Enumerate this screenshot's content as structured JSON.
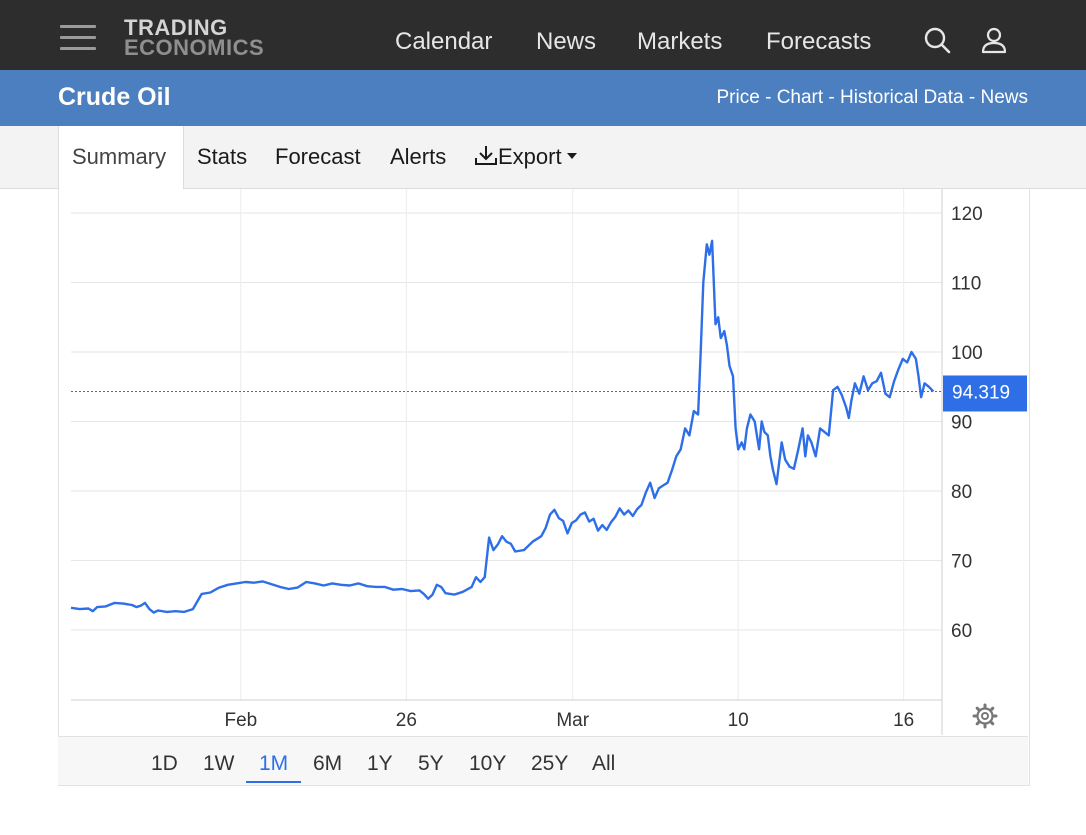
{
  "header": {
    "logo_line1": "TRADING",
    "logo_line2": "ECONOMICS",
    "nav": [
      "Calendar",
      "News",
      "Markets",
      "Forecasts"
    ]
  },
  "title_bar": {
    "title": "Crude Oil",
    "links": [
      "Price",
      "Chart",
      "Historical Data",
      "News"
    ],
    "separator": " - "
  },
  "tabs": {
    "summary": "Summary",
    "stats": "Stats",
    "forecast": "Forecast",
    "alerts": "Alerts",
    "export": "Export"
  },
  "ranges": [
    "1D",
    "1W",
    "1M",
    "6M",
    "1Y",
    "5Y",
    "10Y",
    "25Y",
    "All"
  ],
  "active_range": "1M",
  "colors": {
    "header_bg": "#2d2d2d",
    "title_bg": "#4c7fbf",
    "line": "#2e6fe8",
    "last_label_bg": "#2e6fe8"
  },
  "chart_data": {
    "type": "line",
    "ylim": [
      50,
      120
    ],
    "yticks": [
      60,
      70,
      80,
      90,
      100,
      110,
      120
    ],
    "xlim": [
      0,
      100
    ],
    "xticks": [
      {
        "x": 19.5,
        "label": "Feb"
      },
      {
        "x": 38.5,
        "label": "26"
      },
      {
        "x": 57.6,
        "label": "Mar"
      },
      {
        "x": 76.6,
        "label": "10"
      },
      {
        "x": 95.6,
        "label": "16"
      }
    ],
    "last_value": "94.319",
    "series": [
      {
        "values": [
          [
            0,
            63.2
          ],
          [
            1,
            63.0
          ],
          [
            2,
            63.1
          ],
          [
            2.5,
            62.7
          ],
          [
            3,
            63.3
          ],
          [
            4,
            63.4
          ],
          [
            5,
            63.9
          ],
          [
            6,
            63.8
          ],
          [
            7,
            63.6
          ],
          [
            7.5,
            63.3
          ],
          [
            8,
            63.5
          ],
          [
            8.5,
            63.9
          ],
          [
            9,
            63.0
          ],
          [
            9.5,
            62.5
          ],
          [
            10,
            62.8
          ],
          [
            11,
            62.6
          ],
          [
            12,
            62.7
          ],
          [
            13,
            62.6
          ],
          [
            14,
            63.0
          ],
          [
            15,
            65.2
          ],
          [
            16,
            65.4
          ],
          [
            17,
            66.1
          ],
          [
            18,
            66.5
          ],
          [
            19,
            66.7
          ],
          [
            20,
            66.9
          ],
          [
            21,
            66.8
          ],
          [
            22,
            67.0
          ],
          [
            23,
            66.6
          ],
          [
            24,
            66.2
          ],
          [
            25,
            65.9
          ],
          [
            26,
            66.1
          ],
          [
            27,
            66.9
          ],
          [
            28,
            66.7
          ],
          [
            29,
            66.4
          ],
          [
            30,
            66.7
          ],
          [
            31,
            66.5
          ],
          [
            32,
            66.4
          ],
          [
            33,
            66.7
          ],
          [
            34,
            66.3
          ],
          [
            35,
            66.2
          ],
          [
            36,
            66.2
          ],
          [
            37,
            65.8
          ],
          [
            38,
            65.9
          ],
          [
            39,
            65.6
          ],
          [
            40,
            65.7
          ],
          [
            40.5,
            65.2
          ],
          [
            41,
            64.5
          ],
          [
            41.5,
            65.1
          ],
          [
            42,
            66.5
          ],
          [
            42.5,
            66.2
          ],
          [
            43,
            65.3
          ],
          [
            44,
            65.1
          ],
          [
            45,
            65.5
          ],
          [
            46,
            66.2
          ],
          [
            46.5,
            67.6
          ],
          [
            47,
            66.9
          ],
          [
            47.5,
            67.6
          ],
          [
            48,
            73.3
          ],
          [
            48.5,
            71.5
          ],
          [
            49,
            72.3
          ],
          [
            49.5,
            73.5
          ],
          [
            50,
            72.7
          ],
          [
            50.5,
            72.4
          ],
          [
            51,
            71.3
          ],
          [
            52,
            71.5
          ],
          [
            53,
            72.7
          ],
          [
            54,
            73.5
          ],
          [
            54.5,
            74.7
          ],
          [
            55,
            76.6
          ],
          [
            55.5,
            77.3
          ],
          [
            56,
            76.1
          ],
          [
            56.5,
            75.7
          ],
          [
            57,
            73.9
          ],
          [
            57.5,
            75.4
          ],
          [
            58,
            75.8
          ],
          [
            58.5,
            76.6
          ],
          [
            59,
            76.9
          ],
          [
            59.5,
            75.6
          ],
          [
            60,
            76.0
          ],
          [
            60.5,
            74.3
          ],
          [
            61,
            75.1
          ],
          [
            61.5,
            74.4
          ],
          [
            62,
            75.5
          ],
          [
            62.5,
            76.3
          ],
          [
            63,
            77.5
          ],
          [
            63.5,
            76.6
          ],
          [
            64,
            77.2
          ],
          [
            64.5,
            76.4
          ],
          [
            65,
            77.4
          ],
          [
            65.5,
            78.0
          ],
          [
            66,
            79.8
          ],
          [
            66.5,
            81.2
          ],
          [
            67,
            79.0
          ],
          [
            67.5,
            80.4
          ],
          [
            68,
            80.8
          ],
          [
            68.5,
            81.2
          ],
          [
            69,
            83.0
          ],
          [
            69.5,
            85.0
          ],
          [
            70,
            86.0
          ],
          [
            70.5,
            89.0
          ],
          [
            71,
            88.0
          ],
          [
            71.5,
            91.5
          ],
          [
            72,
            91.0
          ],
          [
            72.3,
            100.0
          ],
          [
            72.6,
            110.0
          ],
          [
            73,
            115.5
          ],
          [
            73.3,
            114.0
          ],
          [
            73.6,
            116.0
          ],
          [
            74,
            104.0
          ],
          [
            74.3,
            105.0
          ],
          [
            74.6,
            102.0
          ],
          [
            75,
            103.0
          ],
          [
            75.3,
            101.0
          ],
          [
            75.6,
            98.0
          ],
          [
            76,
            96.5
          ],
          [
            76.3,
            89.0
          ],
          [
            76.6,
            86.0
          ],
          [
            77,
            87.0
          ],
          [
            77.3,
            86.0
          ],
          [
            77.6,
            89.0
          ],
          [
            78,
            91.0
          ],
          [
            78.5,
            90.0
          ],
          [
            79,
            86.0
          ],
          [
            79.3,
            90.0
          ],
          [
            79.6,
            88.5
          ],
          [
            80,
            88.0
          ],
          [
            80.3,
            85.0
          ],
          [
            80.6,
            83.0
          ],
          [
            81,
            81.0
          ],
          [
            81.3,
            84.0
          ],
          [
            81.6,
            87.0
          ],
          [
            82,
            84.5
          ],
          [
            82.5,
            83.5
          ],
          [
            83,
            83.2
          ],
          [
            83.5,
            86.0
          ],
          [
            84,
            89.0
          ],
          [
            84.3,
            85.0
          ],
          [
            84.6,
            88.0
          ],
          [
            85,
            87.0
          ],
          [
            85.5,
            85.0
          ],
          [
            86,
            89.0
          ],
          [
            86.5,
            88.5
          ],
          [
            87,
            88.0
          ],
          [
            87.5,
            94.5
          ],
          [
            88,
            95.0
          ],
          [
            88.5,
            93.8
          ],
          [
            89,
            92.0
          ],
          [
            89.3,
            90.5
          ],
          [
            89.6,
            93.0
          ],
          [
            90,
            95.5
          ],
          [
            90.5,
            94.0
          ],
          [
            91,
            96.5
          ],
          [
            91.5,
            94.5
          ],
          [
            92,
            95.5
          ],
          [
            92.5,
            95.8
          ],
          [
            93,
            97.0
          ],
          [
            93.5,
            94.0
          ],
          [
            94,
            93.5
          ],
          [
            94.5,
            95.8
          ],
          [
            95,
            97.5
          ],
          [
            95.5,
            99.0
          ],
          [
            96,
            98.5
          ],
          [
            96.5,
            100.0
          ],
          [
            97,
            99.0
          ],
          [
            97.3,
            96.5
          ],
          [
            97.6,
            93.5
          ],
          [
            98,
            95.5
          ],
          [
            98.5,
            95.0
          ],
          [
            99,
            94.319
          ]
        ]
      }
    ]
  }
}
